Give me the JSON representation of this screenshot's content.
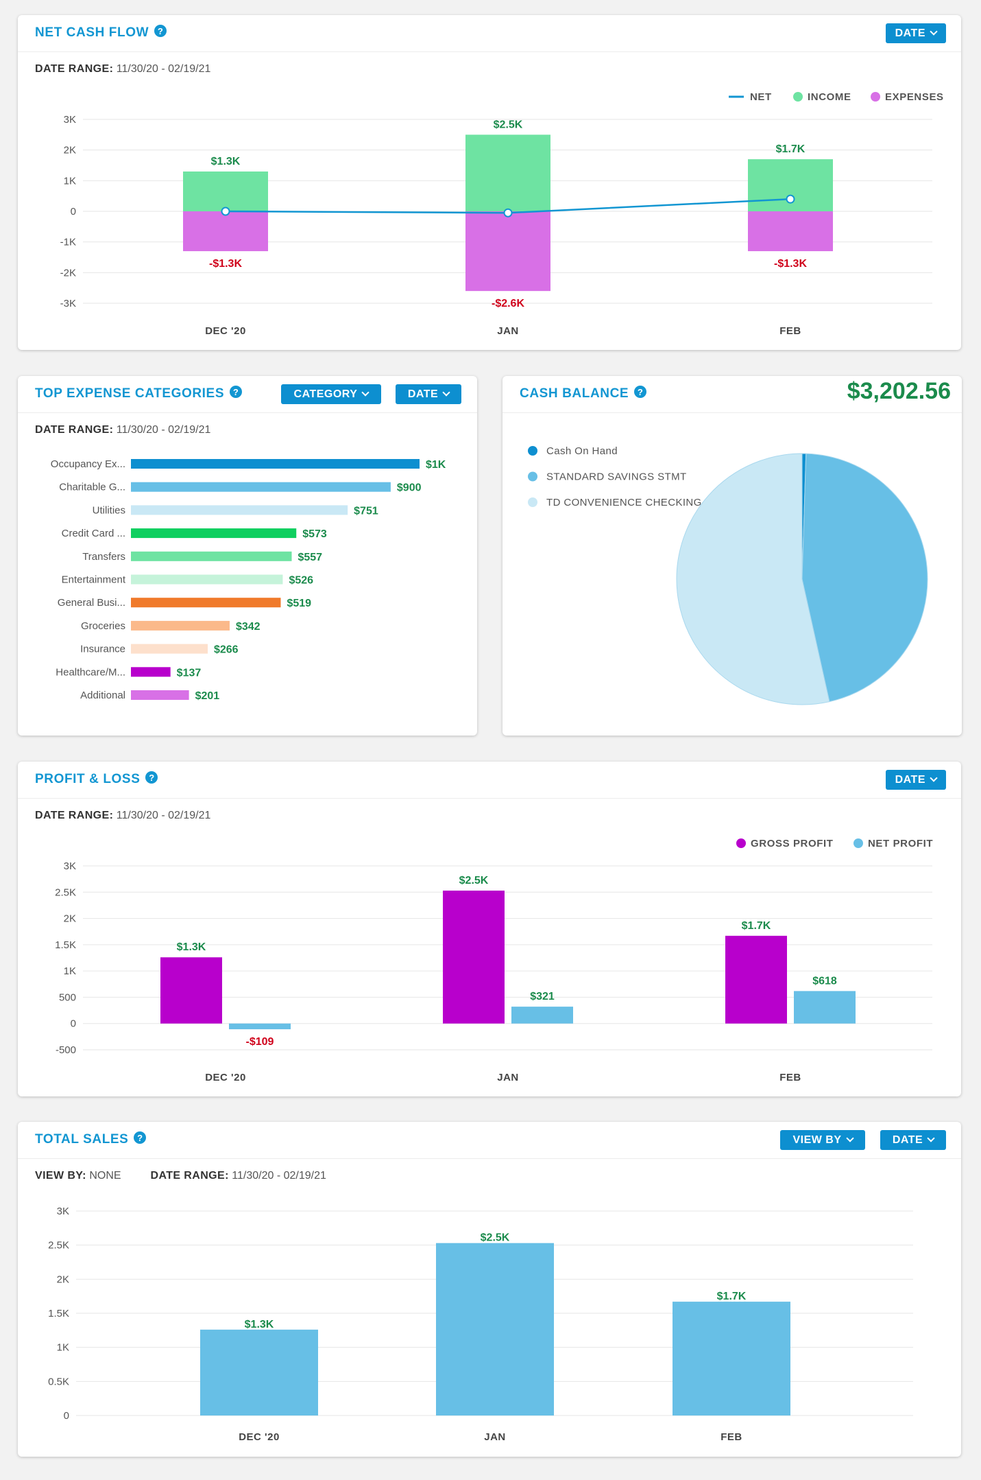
{
  "net_cash_flow": {
    "title": "NET CASH FLOW",
    "date_button": "DATE",
    "date_range_label": "DATE RANGE:",
    "date_range": "11/30/20 - 02/19/21",
    "legend": {
      "net": "NET",
      "income": "INCOME",
      "expenses": "EXPENSES"
    },
    "colors": {
      "net": "#1296d2",
      "income": "#6ee3a2",
      "expenses": "#d870e6"
    },
    "chart_data": {
      "type": "bar",
      "categories": [
        "DEC '20",
        "JAN",
        "FEB"
      ],
      "series": [
        {
          "name": "INCOME",
          "values": [
            1.3,
            2.5,
            1.7
          ],
          "labels": [
            "$1.3K",
            "$2.5K",
            "$1.7K"
          ]
        },
        {
          "name": "EXPENSES",
          "values": [
            -1.3,
            -2.6,
            -1.3
          ],
          "labels": [
            "-$1.3K",
            "-$2.6K",
            "-$1.3K"
          ]
        },
        {
          "name": "NET",
          "values": [
            0,
            -0.05,
            0.4
          ]
        }
      ],
      "yticks": [
        "3K",
        "2K",
        "1K",
        "0",
        "-1K",
        "-2K",
        "-3K"
      ],
      "ylim": [
        -3,
        3
      ],
      "legend": "top-right"
    }
  },
  "top_expense": {
    "title": "TOP EXPENSE CATEGORIES",
    "category_button": "CATEGORY",
    "date_button": "DATE",
    "date_range_label": "DATE RANGE:",
    "date_range": "11/30/20 - 02/19/21",
    "chart_data": {
      "type": "bar",
      "orientation": "horizontal",
      "categories": [
        "Occupancy Ex...",
        "Charitable G...",
        "Utilities",
        "Credit Card ...",
        "Transfers",
        "Entertainment",
        "General Busi...",
        "Groceries",
        "Insurance",
        "Healthcare/M...",
        "Additional"
      ],
      "values": [
        1000,
        900,
        751,
        573,
        557,
        526,
        519,
        342,
        266,
        137,
        201
      ],
      "labels": [
        "$1K",
        "$900",
        "$751",
        "$573",
        "$557",
        "$526",
        "$519",
        "$342",
        "$266",
        "$137",
        "$201"
      ],
      "colors": [
        "#0d8fd0",
        "#67bfe6",
        "#c9e8f5",
        "#0fcf5f",
        "#6ee3a2",
        "#c5f3da",
        "#f07a2a",
        "#fbb98a",
        "#fde0cc",
        "#b800cc",
        "#d870e6"
      ]
    }
  },
  "cash_balance": {
    "title": "CASH BALANCE",
    "total": "$3,202.56",
    "chart_data": {
      "type": "pie",
      "categories": [
        "Cash On Hand",
        "STANDARD SAVINGS STMT",
        "TD CONVENIENCE CHECKING"
      ],
      "values": [
        0.5,
        46,
        53.5
      ],
      "colors": [
        "#0d8fd0",
        "#67bfe6",
        "#c9e8f5"
      ],
      "legend": "top-left"
    }
  },
  "profit_loss": {
    "title": "PROFIT & LOSS",
    "date_button": "DATE",
    "date_range_label": "DATE RANGE:",
    "date_range": "11/30/20 - 02/19/21",
    "legend": {
      "gross": "GROSS PROFIT",
      "net": "NET PROFIT"
    },
    "colors": {
      "gross": "#b800cc",
      "net": "#67bfe6"
    },
    "chart_data": {
      "type": "bar",
      "categories": [
        "DEC '20",
        "JAN",
        "FEB"
      ],
      "series": [
        {
          "name": "GROSS PROFIT",
          "values": [
            1260,
            2530,
            1670
          ],
          "labels": [
            "$1.3K",
            "$2.5K",
            "$1.7K"
          ]
        },
        {
          "name": "NET PROFIT",
          "values": [
            -109,
            321,
            618
          ],
          "labels": [
            "-$109",
            "$321",
            "$618"
          ]
        }
      ],
      "yticks": [
        "3K",
        "2.5K",
        "2K",
        "1.5K",
        "1K",
        "500",
        "0",
        "-500"
      ],
      "ylim": [
        -500,
        3000
      ],
      "legend": "top-right"
    }
  },
  "total_sales": {
    "title": "TOTAL SALES",
    "view_by_button": "VIEW BY",
    "date_button": "DATE",
    "view_by_label": "VIEW BY:",
    "view_by_value": "NONE",
    "date_range_label": "DATE RANGE:",
    "date_range": "11/30/20 - 02/19/21",
    "color": "#67bfe6",
    "chart_data": {
      "type": "bar",
      "categories": [
        "DEC '20",
        "JAN",
        "FEB"
      ],
      "values": [
        1.26,
        2.53,
        1.67
      ],
      "labels": [
        "$1.3K",
        "$2.5K",
        "$1.7K"
      ],
      "yticks": [
        "3K",
        "2.5K",
        "2K",
        "1.5K",
        "1K",
        "0.5K",
        "0"
      ],
      "ylim": [
        0,
        3
      ]
    }
  }
}
